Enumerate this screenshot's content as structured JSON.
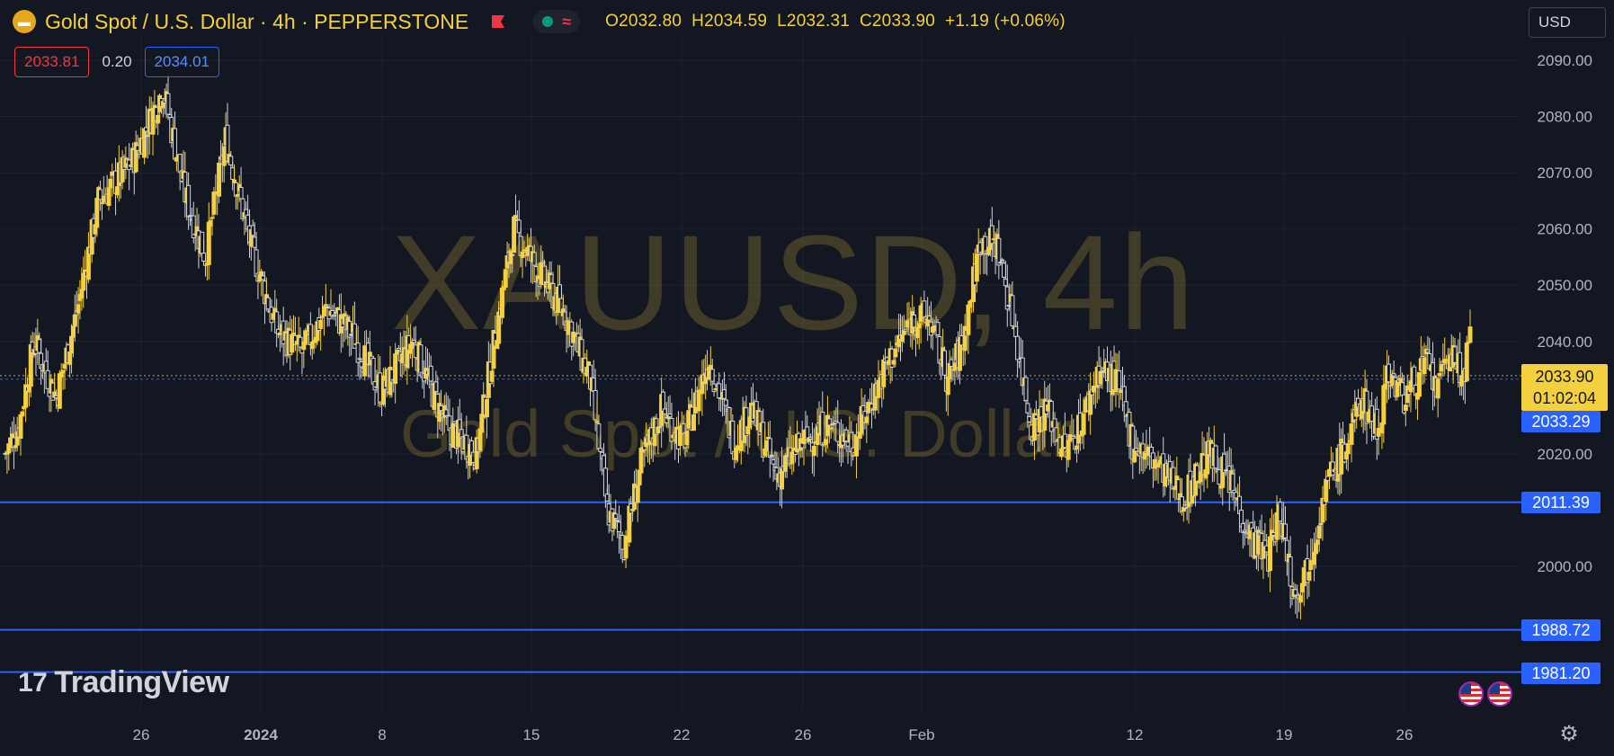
{
  "header": {
    "symbol_title": "Gold Spot / U.S. Dollar · 4h · PEPPERSTONE",
    "icon": "gold-bars-icon",
    "open": "O2032.80",
    "high": "H2034.59",
    "low": "L2032.31",
    "close": "C2033.90",
    "change": "+1.19 (+0.06%)"
  },
  "bid_ask": {
    "bid": "2033.81",
    "spread": "0.20",
    "ask": "2034.01"
  },
  "currency": "USD",
  "watermark": {
    "symbol": "XAUUSD, 4h",
    "description": "Gold Spot / U.S. Dollar"
  },
  "logo": "TradingView",
  "price_tags": {
    "current_price": "2033.90",
    "countdown": "01:02:04",
    "line_1": "2033.29",
    "line_2": "2011.39",
    "line_3": "1988.72",
    "line_4": "1981.20"
  },
  "colors": {
    "background": "#131722",
    "candle": "#f4d03f",
    "candle_down": "#d1d4dc",
    "horizontal_line": "#2962ff",
    "grid": "#1e222d",
    "axis_text": "#b2b5be"
  },
  "chart_data": {
    "type": "candlestick",
    "title": "Gold Spot / U.S. Dollar · 4h · PEPPERSTONE",
    "ylim": [
      1975,
      2094
    ],
    "y_ticks": [
      "2090.00",
      "2080.00",
      "2070.00",
      "2060.00",
      "2050.00",
      "2040.00",
      "2020.00",
      "2000.00"
    ],
    "x_ticks": [
      "26",
      "2024",
      "8",
      "15",
      "22",
      "26",
      "Feb",
      "12",
      "19",
      "26"
    ],
    "horizontal_lines": [
      2033.29,
      2011.39,
      1988.72,
      1981.2
    ],
    "current_price": 2033.9,
    "path_anchors": [
      [
        0,
        2020
      ],
      [
        8,
        2025
      ],
      [
        17,
        2040
      ],
      [
        30,
        2030
      ],
      [
        42,
        2045
      ],
      [
        55,
        2065
      ],
      [
        75,
        2072
      ],
      [
        93,
        2085
      ],
      [
        106,
        2066
      ],
      [
        118,
        2055
      ],
      [
        130,
        2076
      ],
      [
        145,
        2057
      ],
      [
        160,
        2042
      ],
      [
        175,
        2038
      ],
      [
        190,
        2046
      ],
      [
        205,
        2041
      ],
      [
        222,
        2031
      ],
      [
        240,
        2040
      ],
      [
        260,
        2025
      ],
      [
        278,
        2020
      ],
      [
        290,
        2043
      ],
      [
        300,
        2060
      ],
      [
        315,
        2052
      ],
      [
        330,
        2045
      ],
      [
        345,
        2033
      ],
      [
        355,
        2010
      ],
      [
        365,
        2004
      ],
      [
        375,
        2018
      ],
      [
        387,
        2028
      ],
      [
        400,
        2022
      ],
      [
        415,
        2037
      ],
      [
        430,
        2022
      ],
      [
        440,
        2028
      ],
      [
        455,
        2016
      ],
      [
        470,
        2022
      ],
      [
        485,
        2025
      ],
      [
        500,
        2022
      ],
      [
        520,
        2036
      ],
      [
        535,
        2044
      ],
      [
        545,
        2044
      ],
      [
        556,
        2033
      ],
      [
        565,
        2040
      ],
      [
        575,
        2058
      ],
      [
        585,
        2057
      ],
      [
        595,
        2043
      ],
      [
        605,
        2025
      ],
      [
        615,
        2028
      ],
      [
        625,
        2020
      ],
      [
        635,
        2026
      ],
      [
        645,
        2035
      ],
      [
        655,
        2033
      ],
      [
        665,
        2022
      ],
      [
        680,
        2018
      ],
      [
        695,
        2012
      ],
      [
        710,
        2020
      ],
      [
        722,
        2015
      ],
      [
        735,
        2005
      ],
      [
        745,
        2002
      ],
      [
        752,
        2010
      ],
      [
        760,
        1995
      ],
      [
        768,
        2000
      ],
      [
        780,
        2015
      ],
      [
        792,
        2022
      ],
      [
        800,
        2030
      ],
      [
        810,
        2024
      ],
      [
        815,
        2035
      ],
      [
        825,
        2030
      ],
      [
        838,
        2036
      ],
      [
        845,
        2031
      ],
      [
        850,
        2038
      ],
      [
        860,
        2034
      ],
      [
        864,
        2040
      ]
    ]
  }
}
